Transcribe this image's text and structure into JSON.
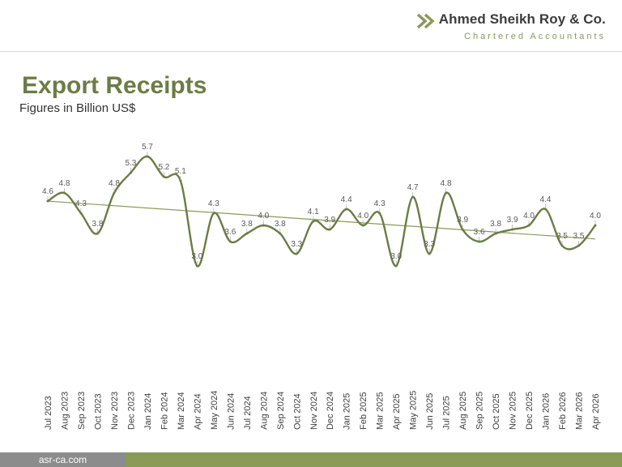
{
  "brand": {
    "name": "Ahmed Sheikh Roy & Co.",
    "tagline": "Chartered Accountants",
    "accent_color": "#8a9a57",
    "logo_icon": "double-chevron-icon"
  },
  "footer": {
    "website": "asr-ca.com"
  },
  "chart_data": {
    "type": "line",
    "title": "Export Receipts",
    "subtitle": "Figures in Billion US$",
    "categories": [
      "Jul 2023",
      "Aug 2023",
      "Sep 2023",
      "Oct 2023",
      "Nov 2023",
      "Dec 2023",
      "Jan 2024",
      "Feb 2024",
      "Mar 2024",
      "Apr 2024",
      "May 2024",
      "Jun 2024",
      "Jul 2024",
      "Aug 2024",
      "Sep 2024",
      "Oct 2024",
      "Nov 2024",
      "Dec 2024",
      "Jan 2025",
      "Feb 2025",
      "Mar 2025",
      "Apr 2025",
      "May 2025",
      "Jun 2025",
      "Jul 2025",
      "Aug 2025",
      "Sep 2025",
      "Oct 2025",
      "Nov 2025",
      "Dec 2025",
      "Jan 2026",
      "Feb 2026",
      "Mar 2026",
      "Apr 2026"
    ],
    "series": [
      {
        "values": [
          4.6,
          4.8,
          4.3,
          3.8,
          4.8,
          5.3,
          5.7,
          5.2,
          5.1,
          3.0,
          4.3,
          3.6,
          3.8,
          4.0,
          3.8,
          3.3,
          4.1,
          3.9,
          4.4,
          4.0,
          4.3,
          3.0,
          4.7,
          3.3,
          4.8,
          3.9,
          3.6,
          3.8,
          3.9,
          4.0,
          4.4,
          3.5,
          3.5,
          4.0
        ],
        "color": "#6b7c46",
        "smooth": true,
        "data_labels": true
      }
    ],
    "trendline": {
      "type": "linear",
      "color": "#8a9a57"
    },
    "xlabel": "",
    "ylabel": "",
    "grid": false,
    "legend": "none",
    "ylim": [
      0,
      6.5
    ]
  }
}
